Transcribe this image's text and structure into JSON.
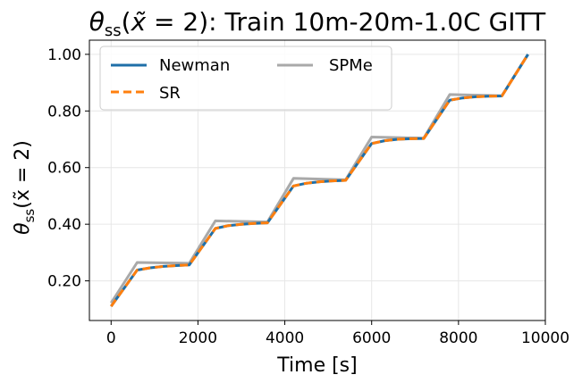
{
  "chart_data": {
    "type": "line",
    "title_parts": {
      "theta": "θ",
      "sub": "ss",
      "paren_open": "(",
      "xvar": "x̃",
      "eq": " = 2): ",
      "rest": "Train 10m-20m-1.0C GITT"
    },
    "xlabel": "Time [s]",
    "ylabel_parts": {
      "theta": "θ",
      "sub": "ss",
      "inner": "(x̃ = 2)"
    },
    "xlim": [
      -500,
      10000
    ],
    "ylim": [
      0.06,
      1.05
    ],
    "xticks": [
      0,
      2000,
      4000,
      6000,
      8000,
      10000
    ],
    "xtick_labels": [
      "0",
      "2000",
      "4000",
      "6000",
      "8000",
      "10000"
    ],
    "yticks": [
      0.2,
      0.4,
      0.6,
      0.8,
      1.0
    ],
    "ytick_labels": [
      "0.20",
      "0.40",
      "0.60",
      "0.80",
      "1.00"
    ],
    "grid": true,
    "legend_position": "top-left",
    "series": [
      {
        "name": "Newman",
        "color": "#1f6fa8",
        "style": "solid",
        "x": [
          0,
          600,
          900,
          1200,
          1500,
          1800,
          2400,
          2700,
          3000,
          3300,
          3600,
          4200,
          4500,
          4800,
          5100,
          5400,
          6000,
          6300,
          6600,
          6900,
          7200,
          7800,
          8100,
          8400,
          8700,
          9000,
          9600
        ],
        "y": [
          0.11,
          0.238,
          0.246,
          0.251,
          0.254,
          0.256,
          0.385,
          0.395,
          0.4,
          0.403,
          0.405,
          0.535,
          0.545,
          0.55,
          0.553,
          0.555,
          0.685,
          0.695,
          0.7,
          0.702,
          0.703,
          0.838,
          0.846,
          0.85,
          0.852,
          0.853,
          1.0
        ]
      },
      {
        "name": "SR",
        "color": "#ff7f0e",
        "style": "dashed",
        "x": [
          0,
          600,
          900,
          1200,
          1500,
          1800,
          2400,
          2700,
          3000,
          3300,
          3600,
          4200,
          4500,
          4800,
          5100,
          5400,
          6000,
          6300,
          6600,
          6900,
          7200,
          7800,
          8100,
          8400,
          8700,
          9000,
          9600
        ],
        "y": [
          0.11,
          0.238,
          0.246,
          0.251,
          0.254,
          0.256,
          0.385,
          0.395,
          0.4,
          0.403,
          0.405,
          0.535,
          0.545,
          0.55,
          0.553,
          0.555,
          0.685,
          0.695,
          0.7,
          0.702,
          0.703,
          0.838,
          0.846,
          0.85,
          0.852,
          0.853,
          1.0
        ]
      },
      {
        "name": "SPMe",
        "color": "#a9a9a9",
        "style": "solid",
        "x": [
          0,
          600,
          1800,
          2400,
          3600,
          4200,
          5400,
          6000,
          7200,
          7800,
          9000,
          9600
        ],
        "y": [
          0.122,
          0.265,
          0.262,
          0.412,
          0.408,
          0.562,
          0.557,
          0.708,
          0.704,
          0.858,
          0.854,
          1.0
        ]
      }
    ]
  }
}
